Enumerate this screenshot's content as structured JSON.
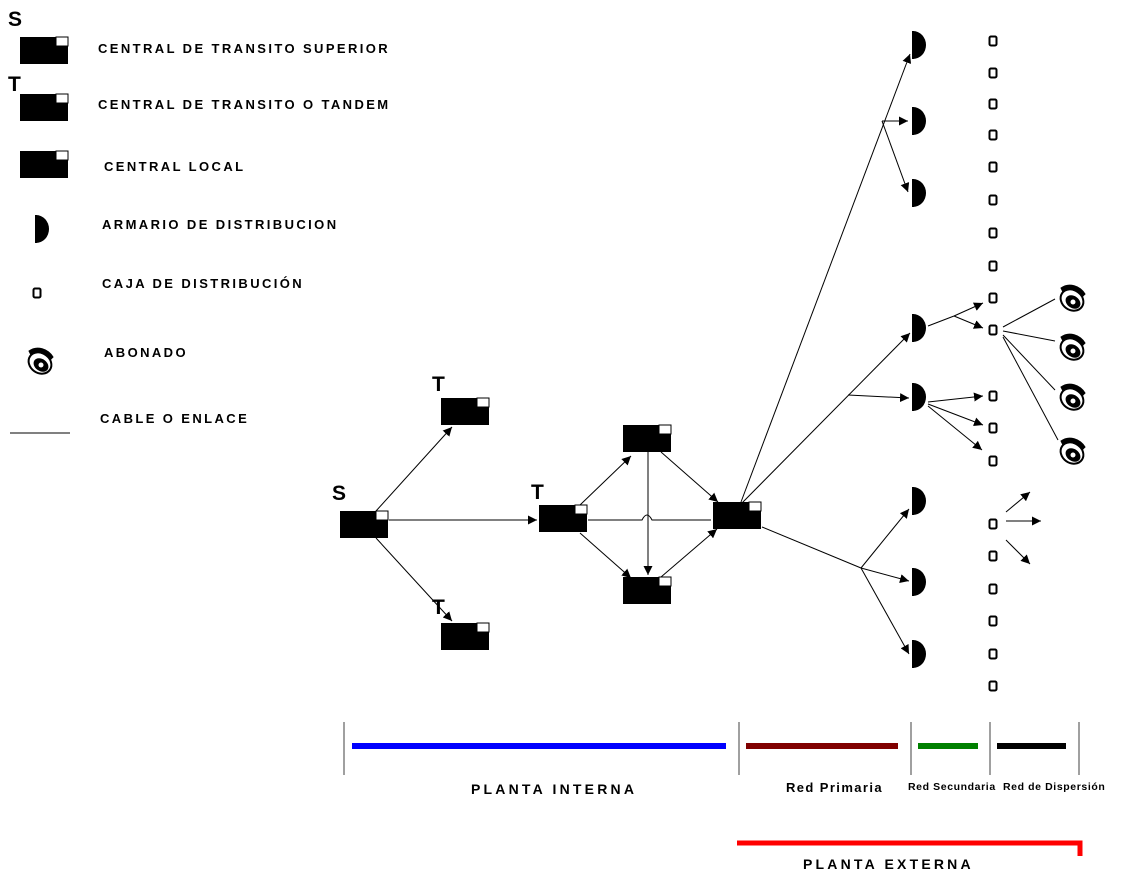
{
  "legend": {
    "superior_prefix": "S",
    "tandem_prefix": "T",
    "items": [
      {
        "label": "CENTRAL DE TRANSITO SUPERIOR"
      },
      {
        "label": "CENTRAL DE TRANSITO O TANDEM"
      },
      {
        "label": "CENTRAL LOCAL"
      },
      {
        "label": "ARMARIO DE DISTRIBUCION"
      },
      {
        "label": "CAJA DE DISTRIBUCIÓN"
      },
      {
        "label": "ABONADO"
      },
      {
        "label": "CABLE O ENLACE"
      }
    ]
  },
  "network": {
    "superior_label": "S",
    "tandem_label": "T"
  },
  "segments": {
    "planta_interna": "PLANTA INTERNA",
    "red_primaria": "Red Primaria",
    "red_secundaria": "Red Secundaria",
    "red_dispersion": "Red de Dispersión",
    "planta_externa": "PLANTA EXTERNA"
  },
  "colors": {
    "planta_interna": "#0000ff",
    "red_primaria": "#800000",
    "red_secundaria": "#008000",
    "red_dispersion": "#000000",
    "planta_externa": "#ff0000"
  }
}
